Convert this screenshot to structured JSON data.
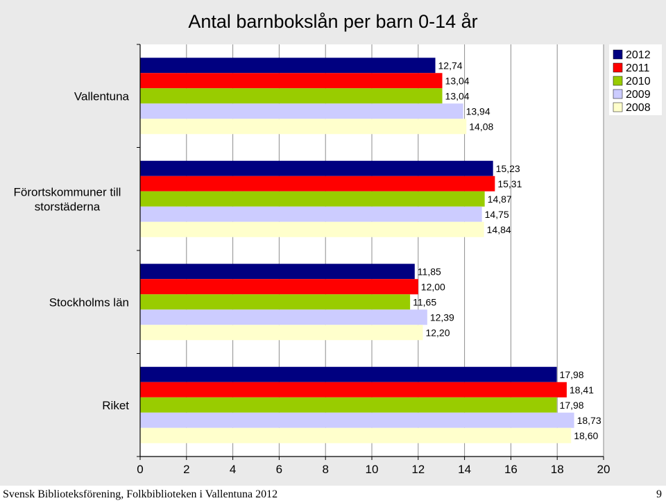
{
  "chart_data": {
    "type": "bar",
    "orientation": "horizontal",
    "title": "Antal barnbokslån per barn 0-14 år",
    "categories": [
      "Vallentuna",
      "Förortskommuner till storstäderna",
      "Stockholms län",
      "Riket"
    ],
    "series": [
      {
        "name": "2012",
        "color": "#000080",
        "values": [
          12.74,
          15.23,
          11.85,
          17.98
        ],
        "labels": [
          "12,74",
          "15,23",
          "11,85",
          "17,98"
        ]
      },
      {
        "name": "2011",
        "color": "#ff0000",
        "values": [
          13.04,
          15.31,
          12.0,
          18.41
        ],
        "labels": [
          "13,04",
          "15,31",
          "12,00",
          "18,41"
        ]
      },
      {
        "name": "2010",
        "color": "#99cc00",
        "values": [
          13.04,
          14.87,
          11.65,
          17.98
        ],
        "labels": [
          "13,04",
          "14,87",
          "11,65",
          "17,98"
        ]
      },
      {
        "name": "2009",
        "color": "#ccccff",
        "values": [
          13.94,
          14.75,
          12.39,
          18.73
        ],
        "labels": [
          "13,94",
          "14,75",
          "12,39",
          "18,73"
        ]
      },
      {
        "name": "2008",
        "color": "#ffffcc",
        "values": [
          14.08,
          14.84,
          12.2,
          18.6
        ],
        "labels": [
          "14,08",
          "14,84",
          "12,20",
          "18,60"
        ]
      }
    ],
    "xlim": [
      0,
      20
    ],
    "xticks": [
      0,
      2,
      4,
      6,
      8,
      10,
      12,
      14,
      16,
      18,
      20
    ],
    "grid": true,
    "legend_position": "top-right"
  },
  "footer": {
    "source": "Svensk Biblioteksförening, Folkbiblioteken i Vallentuna 2012",
    "page_number": "9"
  }
}
